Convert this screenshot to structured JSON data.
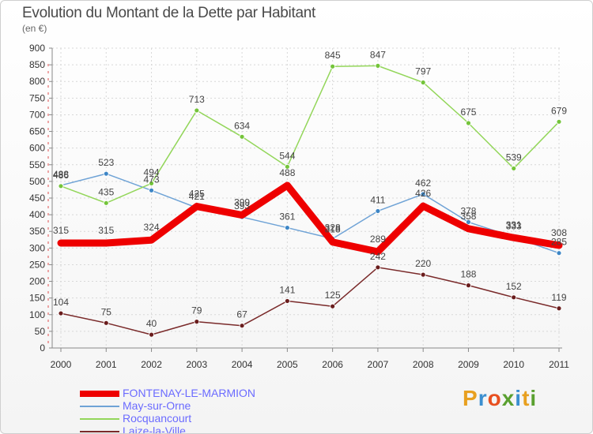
{
  "chart_data": {
    "type": "line",
    "title": "Evolution du Montant de la Dette par Habitant",
    "subtitle": "(en €)",
    "categories": [
      "2000",
      "2001",
      "2002",
      "2003",
      "2004",
      "2005",
      "2006",
      "2007",
      "2008",
      "2009",
      "2010",
      "2011"
    ],
    "ylim": [
      0,
      900
    ],
    "yticks": [
      0,
      50,
      100,
      150,
      200,
      250,
      300,
      350,
      400,
      450,
      500,
      550,
      600,
      650,
      700,
      750,
      800,
      850,
      900
    ],
    "grid": true,
    "legend_position": "bottom-left",
    "series": [
      {
        "name": "May-sur-Orne",
        "color": "#6fa3d6",
        "marker": "#3d86c6",
        "values": [
          488,
          523,
          473,
          421,
          393,
          361,
          328,
          411,
          462,
          378,
          333,
          285
        ]
      },
      {
        "name": "Rocquancourt",
        "color": "#93d65a",
        "marker": "#74c43a",
        "values": [
          486,
          435,
          494,
          713,
          634,
          544,
          845,
          847,
          797,
          675,
          539,
          679
        ]
      },
      {
        "name": "Laize-la-Ville",
        "color": "#7a2a2a",
        "marker": "#6a1d1d",
        "values": [
          104,
          75,
          40,
          79,
          67,
          141,
          125,
          242,
          220,
          188,
          152,
          119
        ]
      },
      {
        "name": "FONTENAY-LE-MARMION",
        "color": "#ee0000",
        "marker": "#ee0000",
        "thick": true,
        "values": [
          315,
          315,
          324,
          425,
          399,
          488,
          318,
          289,
          426,
          358,
          331,
          308
        ]
      }
    ],
    "legend_order": [
      "FONTENAY-LE-MARMION",
      "May-sur-Orne",
      "Rocquancourt",
      "Laize-la-Ville"
    ]
  },
  "brand": {
    "text": "Proxiti",
    "colors": [
      "#e8a020",
      "#3b8fd0",
      "#e85020",
      "#5aa030",
      "#3b8fd0",
      "#e8a020",
      "#5aa030"
    ]
  }
}
